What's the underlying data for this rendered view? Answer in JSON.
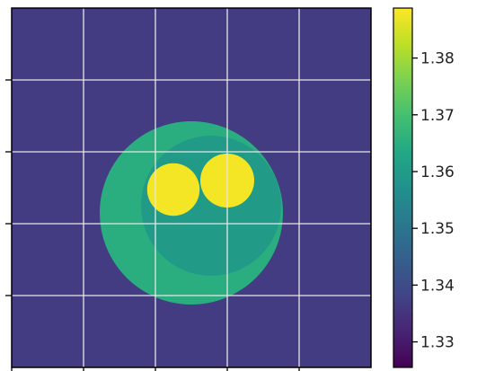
{
  "chart_data": {
    "type": "heatmap",
    "title": "",
    "xlabel": "",
    "ylabel": "",
    "grid": true,
    "background_value": 1.3365,
    "colorbar": {
      "colormap": "viridis",
      "vmin": 1.3255,
      "vmax": 1.3888,
      "ticks": [
        1.33,
        1.34,
        1.35,
        1.36,
        1.37,
        1.38
      ],
      "tick_labels": [
        "1.33",
        "1.34",
        "1.35",
        "1.36",
        "1.37",
        "1.38"
      ]
    },
    "objects": [
      {
        "name": "outer cell",
        "value": 1.365,
        "cx": 0.5,
        "cy": 0.57,
        "r": 0.255
      },
      {
        "name": "inner region",
        "value": 1.36,
        "cx": 0.555,
        "cy": 0.55,
        "r": 0.195
      },
      {
        "name": "nucleus 1",
        "value": 1.388,
        "cx": 0.45,
        "cy": 0.505,
        "r": 0.073
      },
      {
        "name": "nucleus 2",
        "value": 1.388,
        "cx": 0.6,
        "cy": 0.48,
        "r": 0.075
      }
    ]
  }
}
